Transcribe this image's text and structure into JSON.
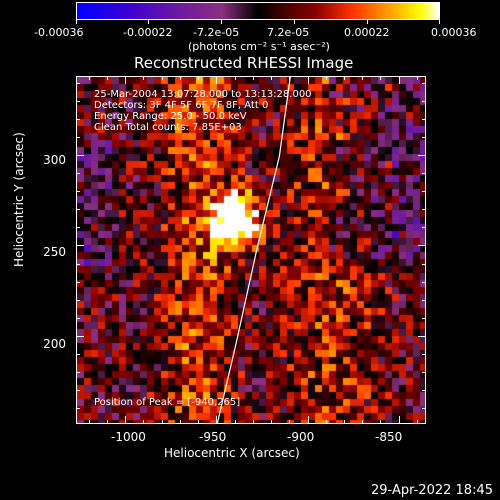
{
  "colorbar": {
    "labels": [
      "-0.00036",
      "-0.00022",
      "-7.2e-05",
      "7.2e-05",
      "0.00022",
      "0.00036"
    ],
    "unit": "(photons cm⁻² s⁻¹ asec⁻²)"
  },
  "plot": {
    "title": "Reconstructed RHESSI Image",
    "info_lines": [
      "25-Mar-2004 13:07:28.000 to 13:13:28.000",
      "Detectors: 3F 4F 5F 6F 7F 8F, Att 0",
      "Energy Range: 25.0 - 50.0 keV",
      "Clean     Total counts: 7.85E+03"
    ],
    "peak_text": "Position of Peak = [-940,265]"
  },
  "chart_data": {
    "type": "heatmap",
    "title": "Reconstructed RHESSI Image",
    "xlabel": "Heliocentric X (arcsec)",
    "ylabel": "Heliocentric Y (arcsec)",
    "xticks": [
      -1000,
      -950,
      -900,
      -850
    ],
    "yticks": [
      200,
      250,
      300
    ],
    "xlim": [
      -1027,
      -835
    ],
    "ylim": [
      151,
      344
    ],
    "peak": [
      -940,
      265
    ],
    "colorscale_min": -0.00036,
    "colorscale_max": 0.00036,
    "limb_curve": [
      [
        -950,
        152
      ],
      [
        -940,
        195
      ],
      [
        -928,
        250
      ],
      [
        -916,
        300
      ],
      [
        -910,
        344
      ]
    ]
  },
  "footer": {
    "datestamp": "29-Apr-2022 18:45"
  }
}
